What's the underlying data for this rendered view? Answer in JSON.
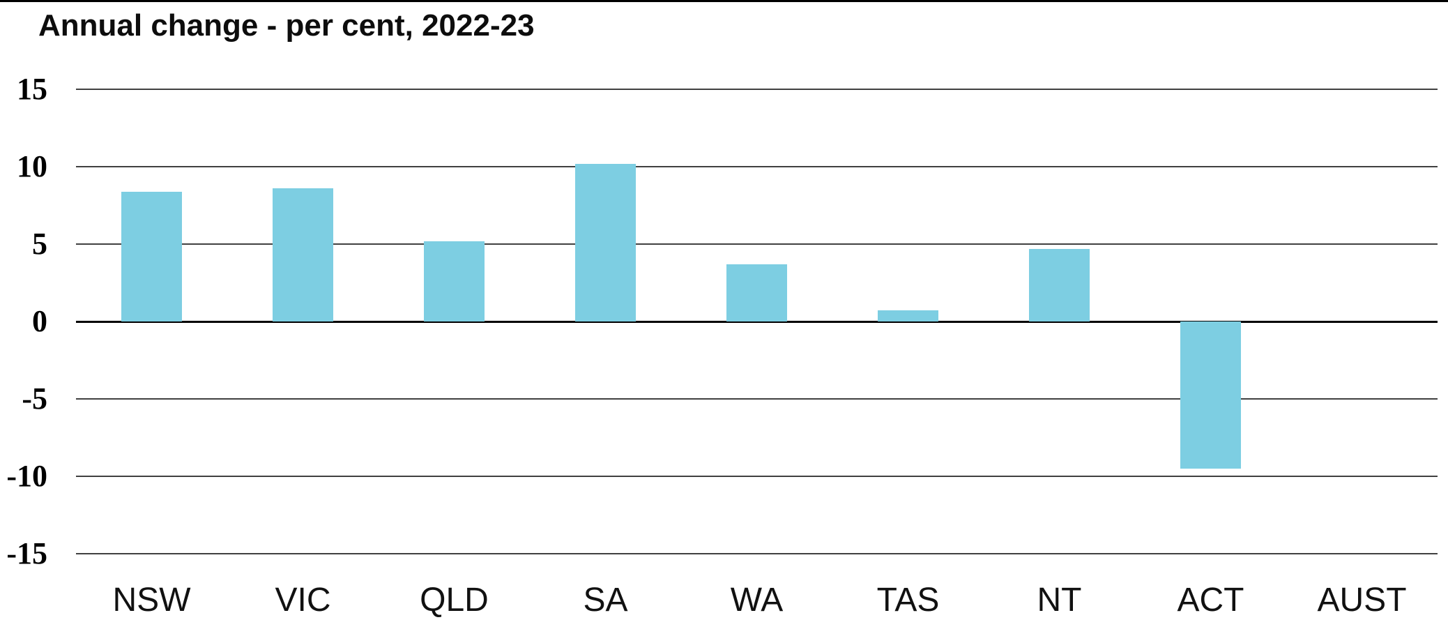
{
  "header": {
    "title": "Annual change - per cent, 2022-23"
  },
  "chart_data": {
    "type": "bar",
    "title": "Annual change - per cent, 2022-23",
    "categories": [
      "NSW",
      "VIC",
      "QLD",
      "SA",
      "WA",
      "TAS",
      "NT",
      "ACT",
      "AUST"
    ],
    "values": [
      8.4,
      8.6,
      5.2,
      10.2,
      3.7,
      0.7,
      4.7,
      -9.5,
      0
    ],
    "ylabel": "",
    "xlabel": "",
    "ylim": [
      -15,
      15
    ],
    "yticks": [
      15,
      10,
      5,
      0,
      -5,
      -10,
      -15
    ],
    "grid": "horizontal",
    "legend": "none",
    "colors": {
      "bar_fill": "#7DCEE2",
      "gridline": "#404040",
      "zero_line": "#000000",
      "top_rule": "#000000",
      "text": "#000000"
    }
  }
}
